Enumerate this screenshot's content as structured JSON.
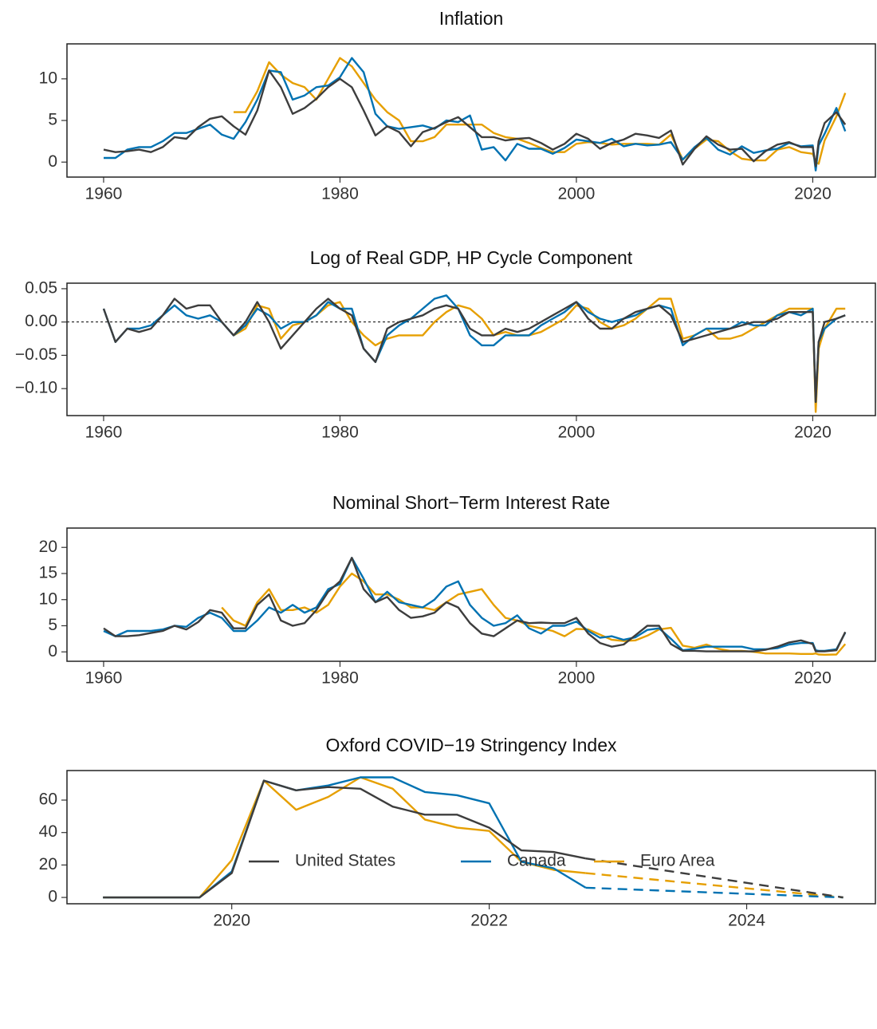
{
  "chart_data": [
    {
      "type": "line",
      "title": "Inflation",
      "x": [
        1960,
        1961,
        1962,
        1963,
        1964,
        1965,
        1966,
        1967,
        1968,
        1969,
        1970,
        1971,
        1972,
        1973,
        1974,
        1975,
        1976,
        1977,
        1978,
        1979,
        1980,
        1981,
        1982,
        1983,
        1984,
        1985,
        1986,
        1987,
        1988,
        1989,
        1990,
        1991,
        1992,
        1993,
        1994,
        1995,
        1996,
        1997,
        1998,
        1999,
        2000,
        2001,
        2002,
        2003,
        2004,
        2005,
        2006,
        2007,
        2008,
        2009,
        2010,
        2011,
        2012,
        2013,
        2014,
        2015,
        2016,
        2017,
        2018,
        2019,
        2020,
        2020.25,
        2020.5,
        2021,
        2022,
        2022.75
      ],
      "series": [
        {
          "name": "United States",
          "color": "#3d3d3d",
          "values": [
            1.5,
            1.2,
            1.3,
            1.5,
            1.2,
            1.8,
            3.0,
            2.8,
            4.2,
            5.2,
            5.5,
            4.3,
            3.3,
            6.2,
            11.0,
            9.0,
            5.8,
            6.5,
            7.6,
            9.0,
            10.0,
            9.0,
            6.2,
            3.2,
            4.3,
            3.6,
            1.9,
            3.6,
            4.1,
            4.8,
            5.4,
            4.2,
            3.0,
            3.0,
            2.6,
            2.8,
            2.9,
            2.3,
            1.5,
            2.2,
            3.4,
            2.8,
            1.6,
            2.3,
            2.7,
            3.4,
            3.2,
            2.9,
            3.8,
            -0.3,
            1.6,
            3.1,
            2.1,
            1.5,
            1.6,
            0.1,
            1.3,
            2.1,
            2.4,
            1.8,
            1.8,
            -0.5,
            2.5,
            4.7,
            6.0,
            4.5
          ]
        },
        {
          "name": "Canada",
          "color": "#0072b2",
          "values": [
            0.5,
            0.5,
            1.5,
            1.8,
            1.8,
            2.5,
            3.5,
            3.5,
            4.0,
            4.5,
            3.3,
            2.8,
            4.8,
            7.5,
            11.0,
            10.8,
            7.5,
            8.0,
            9.0,
            9.2,
            10.2,
            12.5,
            10.8,
            5.8,
            4.3,
            4.0,
            4.2,
            4.4,
            4.0,
            5.0,
            4.8,
            5.6,
            1.5,
            1.8,
            0.2,
            2.2,
            1.6,
            1.6,
            1.0,
            1.7,
            2.7,
            2.5,
            2.3,
            2.8,
            1.9,
            2.2,
            2.0,
            2.1,
            2.4,
            0.3,
            1.8,
            2.9,
            1.5,
            0.9,
            1.9,
            1.1,
            1.4,
            1.6,
            2.3,
            1.9,
            2.0,
            -1.0,
            2.0,
            3.4,
            6.5,
            3.7
          ]
        },
        {
          "name": "Euro Area",
          "color": "#e69f00",
          "values": [
            null,
            null,
            null,
            null,
            null,
            null,
            null,
            null,
            null,
            null,
            null,
            6.0,
            6.0,
            8.5,
            12.0,
            10.5,
            9.5,
            9.0,
            7.5,
            10.0,
            12.5,
            11.5,
            9.5,
            7.5,
            6.0,
            5.0,
            2.5,
            2.5,
            3.0,
            4.5,
            4.5,
            4.5,
            4.5,
            3.5,
            3.0,
            2.8,
            2.3,
            1.7,
            1.2,
            1.2,
            2.2,
            2.4,
            2.3,
            2.1,
            2.2,
            2.2,
            2.2,
            2.1,
            3.3,
            0.3,
            1.6,
            2.7,
            2.5,
            1.3,
            0.4,
            0.2,
            0.2,
            1.5,
            1.8,
            1.2,
            1.0,
            0.0,
            -0.2,
            2.6,
            5.5,
            8.3
          ]
        }
      ],
      "xlim": [
        1956.9,
        2025.3
      ],
      "ylim": [
        -1.8,
        14.2
      ],
      "xticks": [
        1960,
        1980,
        2000,
        2020
      ],
      "yticks": [
        0,
        5,
        10
      ]
    },
    {
      "type": "line",
      "title": "Log of Real GDP, HP Cycle Component",
      "x": [
        1960,
        1961,
        1962,
        1963,
        1964,
        1965,
        1966,
        1967,
        1968,
        1969,
        1970,
        1971,
        1972,
        1973,
        1974,
        1975,
        1976,
        1977,
        1978,
        1979,
        1980,
        1981,
        1982,
        1983,
        1984,
        1985,
        1986,
        1987,
        1988,
        1989,
        1990,
        1991,
        1992,
        1993,
        1994,
        1995,
        1996,
        1997,
        1998,
        1999,
        2000,
        2001,
        2002,
        2003,
        2004,
        2005,
        2006,
        2007,
        2008,
        2009,
        2010,
        2011,
        2012,
        2013,
        2014,
        2015,
        2016,
        2017,
        2018,
        2019,
        2020,
        2020.25,
        2020.5,
        2021,
        2022,
        2022.75
      ],
      "series": [
        {
          "name": "United States",
          "color": "#3d3d3d",
          "values": [
            0.02,
            -0.03,
            -0.01,
            -0.015,
            -0.01,
            0.01,
            0.035,
            0.02,
            0.025,
            0.025,
            0.0,
            -0.02,
            0.0,
            0.03,
            0.0,
            -0.04,
            -0.02,
            0.0,
            0.02,
            0.035,
            0.02,
            0.01,
            -0.04,
            -0.06,
            -0.01,
            0.0,
            0.005,
            0.01,
            0.02,
            0.025,
            0.02,
            -0.01,
            -0.02,
            -0.02,
            -0.01,
            -0.015,
            -0.01,
            0.0,
            0.01,
            0.02,
            0.03,
            0.005,
            -0.01,
            -0.01,
            0.005,
            0.015,
            0.02,
            0.025,
            0.01,
            -0.03,
            -0.025,
            -0.02,
            -0.015,
            -0.01,
            -0.005,
            0.0,
            0.0,
            0.005,
            0.015,
            0.015,
            0.015,
            -0.12,
            -0.03,
            0.0,
            0.005,
            0.01
          ]
        },
        {
          "name": "Canada",
          "color": "#0072b2",
          "values": [
            0.02,
            -0.03,
            -0.01,
            -0.01,
            -0.005,
            0.01,
            0.025,
            0.01,
            0.005,
            0.01,
            0.0,
            -0.02,
            -0.005,
            0.02,
            0.01,
            -0.01,
            0.0,
            0.0,
            0.01,
            0.03,
            0.02,
            0.02,
            -0.04,
            -0.06,
            -0.02,
            -0.005,
            0.005,
            0.02,
            0.035,
            0.04,
            0.02,
            -0.02,
            -0.035,
            -0.035,
            -0.02,
            -0.02,
            -0.02,
            -0.005,
            0.005,
            0.015,
            0.03,
            0.015,
            0.005,
            0.0,
            0.005,
            0.01,
            0.02,
            0.025,
            0.02,
            -0.035,
            -0.02,
            -0.01,
            -0.01,
            -0.01,
            0.0,
            -0.005,
            -0.005,
            0.01,
            0.015,
            0.01,
            0.02,
            -0.12,
            -0.03,
            -0.01,
            0.005,
            0.01
          ]
        },
        {
          "name": "Euro Area",
          "color": "#e69f00",
          "values": [
            null,
            null,
            null,
            null,
            null,
            null,
            null,
            null,
            null,
            null,
            null,
            -0.02,
            -0.01,
            0.025,
            0.02,
            -0.025,
            -0.005,
            0.0,
            0.01,
            0.025,
            0.03,
            0.0,
            -0.02,
            -0.035,
            -0.025,
            -0.02,
            -0.02,
            -0.02,
            0.0,
            0.015,
            0.025,
            0.02,
            0.005,
            -0.02,
            -0.015,
            -0.02,
            -0.02,
            -0.015,
            -0.005,
            0.005,
            0.025,
            0.02,
            0.0,
            -0.01,
            -0.005,
            0.005,
            0.02,
            0.035,
            0.035,
            -0.025,
            -0.02,
            -0.01,
            -0.025,
            -0.025,
            -0.02,
            -0.01,
            0.0,
            0.01,
            0.02,
            0.02,
            0.02,
            -0.135,
            -0.04,
            -0.01,
            0.02,
            0.02
          ]
        }
      ],
      "xlim": [
        1956.9,
        2025.3
      ],
      "ylim": [
        -0.1405,
        0.0583
      ],
      "xticks": [
        1960,
        1980,
        2000,
        2020
      ],
      "yticks": [
        {
          "value": -0.1,
          "label": "−0.10"
        },
        {
          "value": -0.05,
          "label": "−0.05"
        },
        {
          "value": 0,
          "label": "0.00"
        },
        {
          "value": 0.05,
          "label": "0.05"
        }
      ],
      "reference_line": 0
    },
    {
      "type": "line",
      "title": "Nominal Short−Term Interest Rate",
      "x": [
        1960,
        1961,
        1962,
        1963,
        1964,
        1965,
        1966,
        1967,
        1968,
        1969,
        1970,
        1971,
        1972,
        1973,
        1974,
        1975,
        1976,
        1977,
        1978,
        1979,
        1980,
        1981,
        1982,
        1983,
        1984,
        1985,
        1986,
        1987,
        1988,
        1989,
        1990,
        1991,
        1992,
        1993,
        1994,
        1995,
        1996,
        1997,
        1998,
        1999,
        2000,
        2001,
        2002,
        2003,
        2004,
        2005,
        2006,
        2007,
        2008,
        2009,
        2010,
        2011,
        2012,
        2013,
        2014,
        2015,
        2016,
        2017,
        2018,
        2019,
        2020,
        2020.25,
        2020.5,
        2021,
        2022,
        2022.75
      ],
      "series": [
        {
          "name": "United States",
          "color": "#3d3d3d",
          "values": [
            4.5,
            3.0,
            3.0,
            3.2,
            3.6,
            4.0,
            5.0,
            4.3,
            5.7,
            8.0,
            7.5,
            4.5,
            4.5,
            9.0,
            11.0,
            6.0,
            5.0,
            5.5,
            8.0,
            11.5,
            13.5,
            18.0,
            12.0,
            9.5,
            10.5,
            8.0,
            6.5,
            6.8,
            7.5,
            9.5,
            8.5,
            5.5,
            3.5,
            3.0,
            4.5,
            6.0,
            5.5,
            5.6,
            5.5,
            5.5,
            6.5,
            3.5,
            1.7,
            1.0,
            1.4,
            3.2,
            5.0,
            5.0,
            1.5,
            0.2,
            0.2,
            0.1,
            0.1,
            0.1,
            0.1,
            0.1,
            0.4,
            1.0,
            1.8,
            2.2,
            1.5,
            0.1,
            0.1,
            0.1,
            0.3,
            3.8
          ]
        },
        {
          "name": "Canada",
          "color": "#0072b2",
          "values": [
            4.0,
            3.0,
            4.0,
            4.0,
            4.0,
            4.3,
            5.0,
            4.8,
            6.5,
            7.5,
            6.5,
            4.0,
            4.0,
            6.0,
            8.5,
            7.5,
            9.0,
            7.5,
            8.5,
            12.0,
            13.0,
            18.0,
            14.0,
            9.5,
            11.5,
            9.5,
            9.0,
            8.5,
            10.0,
            12.5,
            13.5,
            9.0,
            6.5,
            5.0,
            5.5,
            7.0,
            4.5,
            3.5,
            5.0,
            5.0,
            5.8,
            4.0,
            2.7,
            3.0,
            2.3,
            2.8,
            4.2,
            4.5,
            2.5,
            0.3,
            0.6,
            1.0,
            1.0,
            1.0,
            1.0,
            0.5,
            0.5,
            0.7,
            1.4,
            1.7,
            1.7,
            0.3,
            0.2,
            0.2,
            0.5,
            3.7
          ]
        },
        {
          "name": "Euro Area",
          "color": "#e69f00",
          "values": [
            null,
            null,
            null,
            null,
            null,
            null,
            null,
            null,
            null,
            null,
            8.5,
            6.0,
            5.0,
            9.5,
            12.0,
            8.0,
            8.0,
            8.5,
            7.5,
            9.0,
            12.5,
            15.0,
            13.5,
            11.0,
            11.0,
            10.0,
            8.5,
            8.5,
            8.0,
            9.5,
            11.0,
            11.5,
            12.0,
            9.0,
            6.5,
            6.0,
            5.0,
            4.5,
            4.0,
            3.0,
            4.4,
            4.3,
            3.3,
            2.3,
            2.1,
            2.2,
            3.1,
            4.3,
            4.6,
            1.2,
            0.8,
            1.4,
            0.6,
            0.2,
            0.2,
            0.0,
            -0.3,
            -0.3,
            -0.3,
            -0.4,
            -0.4,
            -0.3,
            -0.5,
            -0.55,
            -0.5,
            1.5
          ]
        }
      ],
      "xlim": [
        1956.9,
        2025.3
      ],
      "ylim": [
        -1.8,
        23.7
      ],
      "xticks": [
        1960,
        1980,
        2000,
        2020
      ],
      "yticks": [
        0,
        5,
        10,
        15,
        20
      ]
    },
    {
      "type": "line",
      "title": "Oxford COVID−19 Stringency Index",
      "x": [
        2019,
        2019.25,
        2019.5,
        2019.75,
        2020,
        2020.25,
        2020.5,
        2020.75,
        2021,
        2021.25,
        2021.5,
        2021.75,
        2022,
        2022.25,
        2022.5,
        2022.75,
        2024.75
      ],
      "series": [
        {
          "name": "United States",
          "color": "#3d3d3d",
          "values": [
            0,
            0,
            0,
            0,
            15,
            72,
            66,
            68,
            67,
            56,
            51,
            51,
            43,
            29,
            28,
            24,
            0
          ]
        },
        {
          "name": "Canada",
          "color": "#0072b2",
          "values": [
            0,
            0,
            0,
            0,
            16,
            72,
            66,
            69,
            74,
            74,
            65,
            63,
            58,
            22,
            18,
            6,
            0
          ]
        },
        {
          "name": "Euro Area",
          "color": "#e69f00",
          "values": [
            0,
            0,
            0,
            0,
            23,
            72,
            54,
            62,
            74,
            67,
            48,
            43,
            41,
            22,
            17,
            15,
            0
          ]
        }
      ],
      "projection_start": 2022.75,
      "xlim": [
        2018.72,
        2025.0
      ],
      "ylim": [
        -3.9,
        78.2
      ],
      "xticks": [
        2020,
        2022,
        2024
      ],
      "yticks": [
        0,
        20,
        40,
        60
      ],
      "legend": "bottom"
    }
  ]
}
